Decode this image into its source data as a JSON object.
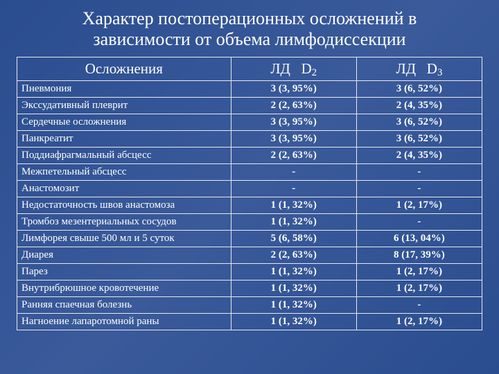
{
  "title_line1": "Характер постоперационных осложнений в",
  "title_line2": "зависимости от объема лимфодиссекции",
  "headers": {
    "col0": "Осложнения",
    "col1_prefix": "ЛД   D",
    "col1_sub": "2",
    "col2_prefix": "ЛД   D",
    "col2_sub": "3"
  },
  "rows": [
    {
      "label": "Пневмония",
      "d2": "3 (3, 95%)",
      "d3": "3 (6, 52%)"
    },
    {
      "label": "Экссудативный плеврит",
      "d2": "2 (2, 63%)",
      "d3": "2 (4, 35%)"
    },
    {
      "label": "Сердечные осложнения",
      "d2": "3 (3, 95%)",
      "d3": "3 (6, 52%)"
    },
    {
      "label": "Панкреатит",
      "d2": "3 (3, 95%)",
      "d3": "3 (6, 52%)"
    },
    {
      "label": "Поддиафрагмальный абсцесс",
      "d2": "2 (2, 63%)",
      "d3": "2 (4, 35%)"
    },
    {
      "label": "Межпетельный абсцесс",
      "d2": "-",
      "d3": "-"
    },
    {
      "label": "Анастомозит",
      "d2": "-",
      "d3": "-"
    },
    {
      "label": "Недостаточность швов анастомоза",
      "d2": "1 (1, 32%)",
      "d3": "1 (2, 17%)"
    },
    {
      "label": "Тромбоз мезентериальных сосудов",
      "d2": "1 (1, 32%)",
      "d3": "-"
    },
    {
      "label": "Лимфорея свыше 500 мл и 5 суток",
      "d2": "5 (6, 58%)",
      "d3": "6 (13, 04%)"
    },
    {
      "label": "Диарея",
      "d2": "2 (2, 63%)",
      "d3": "8 (17, 39%)"
    },
    {
      "label": "Парез",
      "d2": "1 (1, 32%)",
      "d3": "1 (2, 17%)"
    },
    {
      "label": "Внутрибрюшное кровотечение",
      "d2": "1 (1, 32%)",
      "d3": "1 (2, 17%)"
    },
    {
      "label": "Ранняя спаечная болезнь",
      "d2": "1 (1, 32%)",
      "d3": "-"
    },
    {
      "label": "Нагноение лапаротомной раны",
      "d2": "1 (1, 32%)",
      "d3": "1 (2, 17%)"
    }
  ],
  "colors": {
    "background_from": "#2a4d8f",
    "background_to": "#3a5a9a",
    "text": "#ffffff",
    "border": "#e8e8f0"
  }
}
